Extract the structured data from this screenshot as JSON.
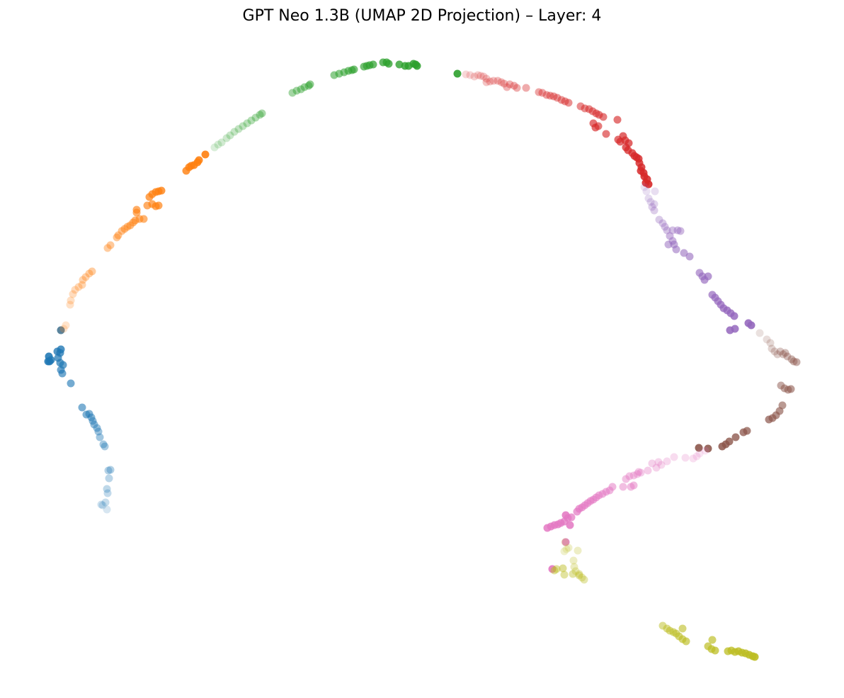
{
  "chart_data": {
    "type": "scatter",
    "title": "GPT Neo 1.3B (UMAP 2D Projection) – Layer: 4",
    "xlabel": "",
    "ylabel": "",
    "axes_visible": false,
    "grid": false,
    "legend": "none",
    "marker_color_mode": "per-cluster color, opacity increasing along the trajectory",
    "series": [
      {
        "color": "#1f77b4",
        "points": [
          [
            151,
            719
          ],
          [
            145,
            713
          ],
          [
            143,
            712
          ],
          [
            149,
            709
          ],
          [
            152,
            696
          ],
          [
            151,
            690
          ],
          [
            154,
            675
          ],
          [
            153,
            664
          ],
          [
            156,
            663
          ],
          [
            148,
            630
          ],
          [
            146,
            627
          ],
          [
            141,
            617
          ],
          [
            139,
            609
          ],
          [
            137,
            604
          ],
          [
            133,
            599
          ],
          [
            131,
            594
          ],
          [
            129,
            589
          ],
          [
            126,
            584
          ],
          [
            122,
            585
          ],
          [
            116,
            575
          ],
          [
            100,
            541
          ],
          [
            88,
            527
          ],
          [
            86,
            522
          ],
          [
            89,
            515
          ],
          [
            85,
            512
          ],
          [
            82,
            505
          ],
          [
            85,
            498
          ],
          [
            81,
            496
          ],
          [
            86,
            493
          ],
          [
            72,
            508
          ],
          [
            70,
            510
          ],
          [
            68,
            510
          ],
          [
            69,
            503
          ],
          [
            86,
            466
          ]
        ]
      },
      {
        "color": "#ff7f0e",
        "points": [
          [
            86,
            466
          ],
          [
            90,
            464
          ],
          [
            93,
            459
          ],
          [
            99,
            430
          ],
          [
            100,
            424
          ],
          [
            103,
            415
          ],
          [
            106,
            409
          ],
          [
            111,
            405
          ],
          [
            116,
            402
          ],
          [
            117,
            395
          ],
          [
            121,
            391
          ],
          [
            126,
            386
          ],
          [
            130,
            383
          ],
          [
            152,
            350
          ],
          [
            156,
            346
          ],
          [
            165,
            335
          ],
          [
            167,
            332
          ],
          [
            172,
            326
          ],
          [
            176,
            323
          ],
          [
            180,
            320
          ],
          [
            184,
            318
          ],
          [
            188,
            314
          ],
          [
            191,
            311
          ],
          [
            197,
            309
          ],
          [
            203,
            309
          ],
          [
            193,
            300
          ],
          [
            193,
            296
          ],
          [
            208,
            290
          ],
          [
            215,
            288
          ],
          [
            220,
            291
          ],
          [
            224,
            290
          ],
          [
            211,
            278
          ],
          [
            215,
            274
          ],
          [
            220,
            271
          ],
          [
            224,
            270
          ],
          [
            228,
            269
          ],
          [
            263,
            241
          ],
          [
            267,
            236
          ],
          [
            270,
            234
          ],
          [
            274,
            233
          ],
          [
            279,
            229
          ],
          [
            281,
            226
          ],
          [
            290,
            218
          ]
        ]
      },
      {
        "color": "#2ca02c",
        "points": [
          [
            303,
            208
          ],
          [
            308,
            204
          ],
          [
            313,
            201
          ],
          [
            320,
            195
          ],
          [
            325,
            191
          ],
          [
            331,
            186
          ],
          [
            337,
            182
          ],
          [
            343,
            178
          ],
          [
            349,
            174
          ],
          [
            355,
            170
          ],
          [
            361,
            166
          ],
          [
            367,
            162
          ],
          [
            370,
            160
          ],
          [
            413,
            131
          ],
          [
            419,
            128
          ],
          [
            425,
            126
          ],
          [
            430,
            123
          ],
          [
            436,
            121
          ],
          [
            438,
            119
          ],
          [
            472,
            106
          ],
          [
            479,
            104
          ],
          [
            486,
            102
          ],
          [
            492,
            100
          ],
          [
            497,
            99
          ],
          [
            500,
            98
          ],
          [
            514,
            94
          ],
          [
            518,
            93
          ],
          [
            522,
            92
          ],
          [
            527,
            91
          ],
          [
            541,
            88
          ],
          [
            546,
            88
          ],
          [
            549,
            90
          ],
          [
            564,
            91
          ],
          [
            572,
            93
          ],
          [
            577,
            93
          ],
          [
            584,
            90
          ],
          [
            587,
            91
          ],
          [
            589,
            93
          ],
          [
            646,
            104
          ]
        ]
      },
      {
        "color": "#d62728",
        "points": [
          [
            658,
            105
          ],
          [
            664,
            106
          ],
          [
            670,
            108
          ],
          [
            675,
            106
          ],
          [
            679,
            107
          ],
          [
            683,
            108
          ],
          [
            687,
            111
          ],
          [
            687,
            116
          ],
          [
            692,
            115
          ],
          [
            697,
            114
          ],
          [
            703,
            114
          ],
          [
            708,
            116
          ],
          [
            712,
            118
          ],
          [
            716,
            123
          ],
          [
            720,
            119
          ],
          [
            726,
            121
          ],
          [
            730,
            124
          ],
          [
            743,
            124
          ],
          [
            761,
            130
          ],
          [
            766,
            131
          ],
          [
            772,
            134
          ],
          [
            777,
            135
          ],
          [
            782,
            136
          ],
          [
            787,
            138
          ],
          [
            793,
            141
          ],
          [
            798,
            143
          ],
          [
            803,
            145
          ],
          [
            820,
            150
          ],
          [
            826,
            153
          ],
          [
            832,
            154
          ],
          [
            837,
            157
          ],
          [
            842,
            160
          ],
          [
            846,
            162
          ],
          [
            852,
            165
          ],
          [
            845,
            178
          ],
          [
            856,
            189
          ],
          [
            872,
            169
          ],
          [
            838,
            174
          ],
          [
            841,
            180
          ],
          [
            873,
            197
          ],
          [
            876,
            200
          ],
          [
            880,
            192
          ],
          [
            883,
            198
          ],
          [
            888,
            202
          ],
          [
            884,
            208
          ],
          [
            887,
            212
          ],
          [
            893,
            216
          ],
          [
            896,
            220
          ],
          [
            899,
            222
          ],
          [
            902,
            224
          ],
          [
            903,
            230
          ],
          [
            906,
            236
          ],
          [
            905,
            241
          ],
          [
            909,
            244
          ],
          [
            910,
            249
          ],
          [
            914,
            253
          ],
          [
            912,
            258
          ],
          [
            916,
            260
          ]
        ]
      },
      {
        "color": "#9467bd",
        "points": [
          [
            910,
            264
          ],
          [
            913,
            270
          ],
          [
            925,
            270
          ],
          [
            916,
            280
          ],
          [
            919,
            285
          ],
          [
            924,
            288
          ],
          [
            921,
            292
          ],
          [
            924,
            297
          ],
          [
            931,
            310
          ],
          [
            936,
            315
          ],
          [
            939,
            320
          ],
          [
            942,
            325
          ],
          [
            950,
            325
          ],
          [
            957,
            325
          ],
          [
            961,
            326
          ],
          [
            946,
            333
          ],
          [
            950,
            340
          ],
          [
            944,
            345
          ],
          [
            952,
            345
          ],
          [
            955,
            352
          ],
          [
            966,
            357
          ],
          [
            974,
            362
          ],
          [
            988,
            385
          ],
          [
            992,
            390
          ],
          [
            995,
            395
          ],
          [
            1000,
            390
          ],
          [
            1006,
            416
          ],
          [
            1010,
            420
          ],
          [
            1014,
            425
          ],
          [
            1018,
            430
          ],
          [
            1022,
            435
          ],
          [
            1027,
            438
          ],
          [
            1032,
            442
          ],
          [
            1037,
            446
          ],
          [
            1038,
            464
          ],
          [
            1031,
            466
          ],
          [
            1057,
            456
          ],
          [
            1061,
            459
          ]
        ]
      },
      {
        "color": "#8c564b",
        "points": [
          [
            1073,
            470
          ],
          [
            1083,
            479
          ],
          [
            1088,
            484
          ],
          [
            1090,
            492
          ],
          [
            1094,
            496
          ],
          [
            1098,
            500
          ],
          [
            1102,
            496
          ],
          [
            1106,
            500
          ],
          [
            1109,
            498
          ],
          [
            1112,
            503
          ],
          [
            1118,
            507
          ],
          [
            1121,
            510
          ],
          [
            1125,
            511
          ],
          [
            1103,
            544
          ],
          [
            1108,
            548
          ],
          [
            1113,
            550
          ],
          [
            1117,
            549
          ],
          [
            1105,
            572
          ],
          [
            1101,
            580
          ],
          [
            1096,
            586
          ],
          [
            1091,
            590
          ],
          [
            1086,
            592
          ],
          [
            1055,
            608
          ],
          [
            1050,
            610
          ],
          [
            1039,
            617
          ],
          [
            1030,
            623
          ],
          [
            1025,
            627
          ],
          [
            1020,
            630
          ],
          [
            1000,
            633
          ],
          [
            987,
            632
          ]
        ]
      },
      {
        "color": "#e377c2",
        "points": [
          [
            996,
            636
          ],
          [
            988,
            640
          ],
          [
            984,
            644
          ],
          [
            979,
            647
          ],
          [
            968,
            646
          ],
          [
            952,
            645
          ],
          [
            942,
            651
          ],
          [
            934,
            656
          ],
          [
            930,
            652
          ],
          [
            927,
            660
          ],
          [
            921,
            654
          ],
          [
            915,
            664
          ],
          [
            905,
            667
          ],
          [
            902,
            666
          ],
          [
            900,
            669
          ],
          [
            895,
            671
          ],
          [
            889,
            672
          ],
          [
            884,
            676
          ],
          [
            880,
            687
          ],
          [
            891,
            687
          ],
          [
            895,
            685
          ],
          [
            865,
            687
          ],
          [
            861,
            692
          ],
          [
            856,
            694
          ],
          [
            851,
            697
          ],
          [
            846,
            699
          ],
          [
            842,
            702
          ],
          [
            838,
            705
          ],
          [
            834,
            707
          ],
          [
            830,
            710
          ],
          [
            826,
            713
          ],
          [
            822,
            716
          ],
          [
            818,
            718
          ],
          [
            815,
            722
          ],
          [
            807,
            730
          ],
          [
            802,
            731
          ],
          [
            797,
            736
          ],
          [
            792,
            738
          ],
          [
            788,
            740
          ],
          [
            783,
            741
          ],
          [
            778,
            743
          ],
          [
            773,
            745
          ],
          [
            805,
            741
          ],
          [
            799,
            727
          ],
          [
            799,
            765
          ],
          [
            780,
            803
          ]
        ]
      },
      {
        "color": "#bcbd22",
        "points": [
          [
            798,
            765
          ],
          [
            800,
            775
          ],
          [
            797,
            778
          ],
          [
            803,
            773
          ],
          [
            816,
            777
          ],
          [
            810,
            791
          ],
          [
            811,
            800
          ],
          [
            813,
            806
          ],
          [
            818,
            810
          ],
          [
            822,
            815
          ],
          [
            825,
            818
          ],
          [
            818,
            812
          ],
          [
            809,
            810
          ],
          [
            797,
            811
          ],
          [
            786,
            803
          ],
          [
            783,
            805
          ],
          [
            795,
            802
          ],
          [
            936,
            883
          ],
          [
            942,
            887
          ],
          [
            946,
            890
          ],
          [
            951,
            892
          ],
          [
            955,
            894
          ],
          [
            964,
            887
          ],
          [
            959,
            898
          ],
          [
            964,
            902
          ],
          [
            969,
            905
          ],
          [
            1006,
            903
          ],
          [
            1000,
            912
          ],
          [
            1005,
            916
          ],
          [
            1010,
            918
          ],
          [
            1028,
            919
          ],
          [
            1033,
            918
          ],
          [
            1038,
            920
          ],
          [
            1043,
            919
          ],
          [
            1048,
            921
          ],
          [
            1053,
            922
          ],
          [
            1058,
            924
          ],
          [
            1063,
            926
          ],
          [
            1066,
            927
          ]
        ]
      }
    ]
  }
}
